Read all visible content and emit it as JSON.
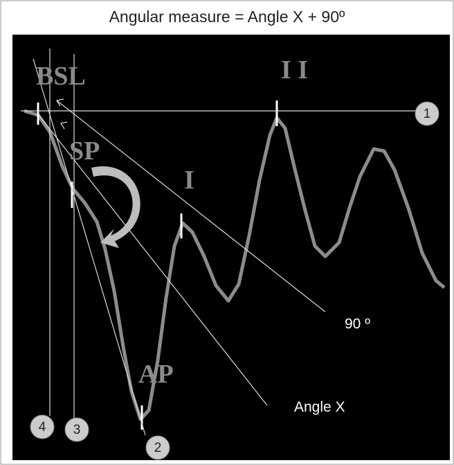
{
  "header": {
    "title": "Angular measure = Angle X + 90º"
  },
  "waveform_labels": {
    "bsl": "BSL",
    "sp": "SP",
    "i": "I",
    "ii": "I I",
    "ap": "AP"
  },
  "annotations": {
    "ninety": "90 º",
    "angle_x": "Angle X"
  },
  "markers": [
    "1",
    "2",
    "3",
    "4"
  ]
}
